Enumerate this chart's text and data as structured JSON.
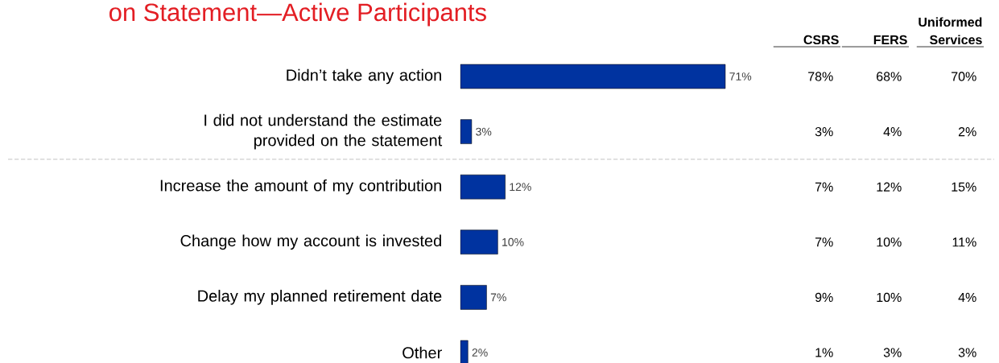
{
  "chart_data": {
    "type": "bar",
    "orientation": "horizontal",
    "title": "on Statement—Active Participants",
    "categories": [
      "Didn’t take any action",
      "I did not understand the estimate provided on the statement",
      "Increase the amount of my contribution",
      "Change how my account is invested",
      "Delay my planned retirement date",
      "Other"
    ],
    "series": [
      {
        "color": "#0033a0",
        "values": [
          71,
          3,
          12,
          10,
          7,
          2
        ],
        "value_labels": [
          "71%",
          "3%",
          "12%",
          "10%",
          "7%",
          "2%"
        ]
      }
    ],
    "annotations": [
      "CSRS",
      "FERS",
      "Uniformed Services",
      "78%",
      "68%",
      "70%",
      "3%",
      "4%",
      "2%",
      "7%",
      "12%",
      "15%",
      "7%",
      "10%",
      "11%",
      "9%",
      "10%",
      "4%",
      "1%",
      "3%",
      "3%"
    ]
  }
}
